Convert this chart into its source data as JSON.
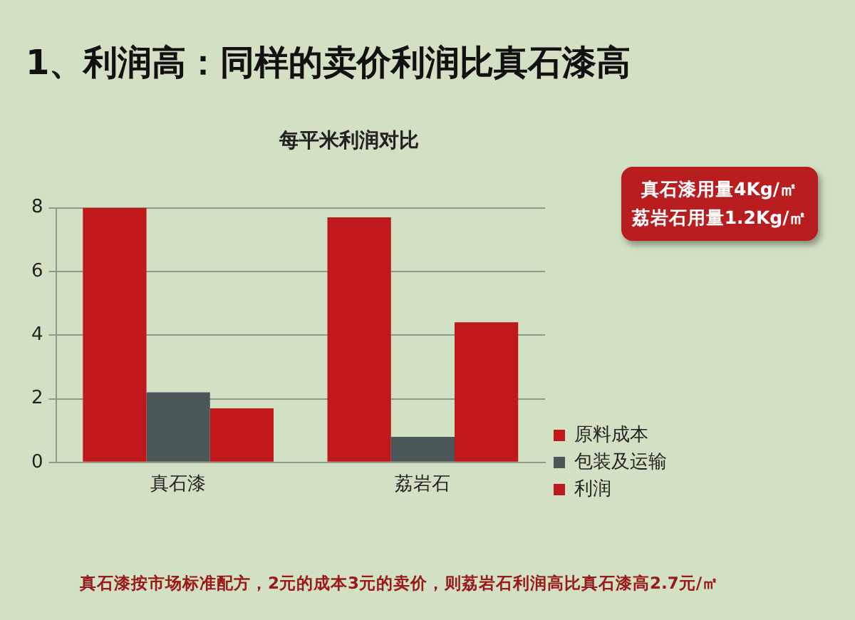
{
  "chart_data": {
    "type": "bar",
    "title": "1、利润高：同样的卖价利润比真石漆高",
    "subtitle": "每平米利润对比",
    "categories": [
      "真石漆",
      "荔岩石"
    ],
    "series": [
      {
        "name": "原料成本",
        "color": "#c0181b",
        "values": [
          8,
          7.7
        ]
      },
      {
        "name": "包装及运输",
        "color": "#4a585a",
        "values": [
          2.2,
          0.8
        ]
      },
      {
        "name": "利润",
        "color": "#c0181b",
        "values": [
          1.7,
          4.4
        ]
      }
    ],
    "ylim": [
      0,
      8
    ],
    "yticks": [
      0,
      2,
      4,
      6,
      8
    ],
    "grid": "y",
    "legend": "right",
    "annotations": [
      "真石漆用量4Kg/㎡",
      "荔岩石用量1.2Kg/㎡",
      "真石漆按市场标准配方，2元的成本3元的卖价，则荔岩石利润高比真石漆高2.7元/㎡"
    ]
  }
}
